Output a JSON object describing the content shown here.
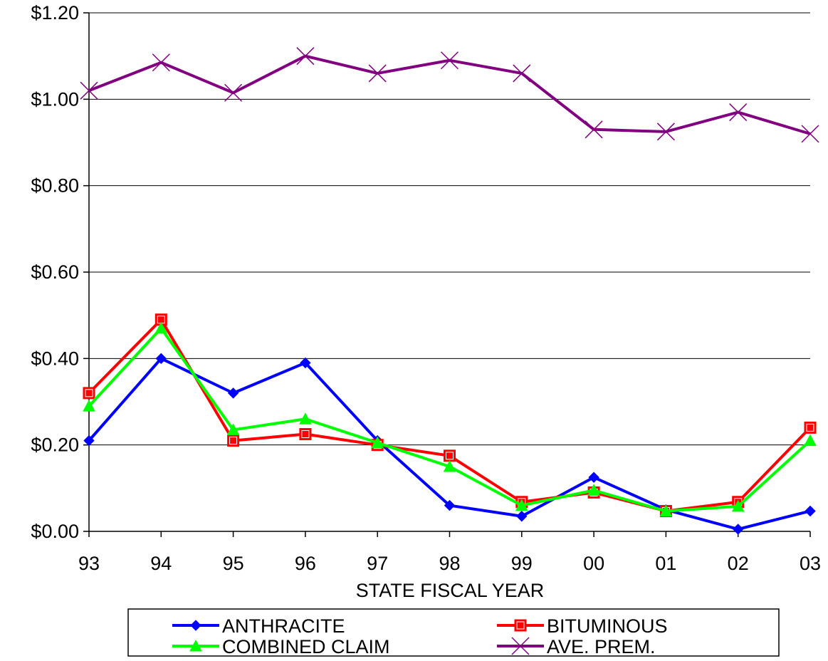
{
  "chart_data": {
    "type": "line",
    "title": "",
    "xlabel": "STATE FISCAL YEAR",
    "ylabel": "",
    "categories": [
      "93",
      "94",
      "95",
      "96",
      "97",
      "98",
      "99",
      "00",
      "01",
      "02",
      "03"
    ],
    "yticks": [
      "$0.00",
      "$0.20",
      "$0.40",
      "$0.60",
      "$0.80",
      "$1.00",
      "$1.20"
    ],
    "ylim": [
      0,
      1.2
    ],
    "grid": "horizontal",
    "legend_position": "bottom",
    "series": [
      {
        "name": "ANTHRACITE",
        "color": "#0000ff",
        "marker": "diamond",
        "values": [
          0.21,
          0.4,
          0.32,
          0.39,
          0.21,
          0.06,
          0.035,
          0.125,
          0.05,
          0.005,
          0.047
        ]
      },
      {
        "name": "BITUMINOUS",
        "color": "#ff0000",
        "marker": "square",
        "values": [
          0.32,
          0.49,
          0.21,
          0.225,
          0.2,
          0.175,
          0.068,
          0.09,
          0.047,
          0.068,
          0.24
        ]
      },
      {
        "name": "COMBINED CLAIM",
        "color": "#00ff00",
        "marker": "triangle",
        "values": [
          0.29,
          0.47,
          0.235,
          0.26,
          0.205,
          0.15,
          0.06,
          0.095,
          0.047,
          0.058,
          0.21
        ]
      },
      {
        "name": "AVE. PREM.",
        "color": "#800080",
        "marker": "x",
        "values": [
          1.02,
          1.085,
          1.015,
          1.1,
          1.06,
          1.09,
          1.06,
          0.93,
          0.925,
          0.97,
          0.92
        ]
      }
    ]
  }
}
